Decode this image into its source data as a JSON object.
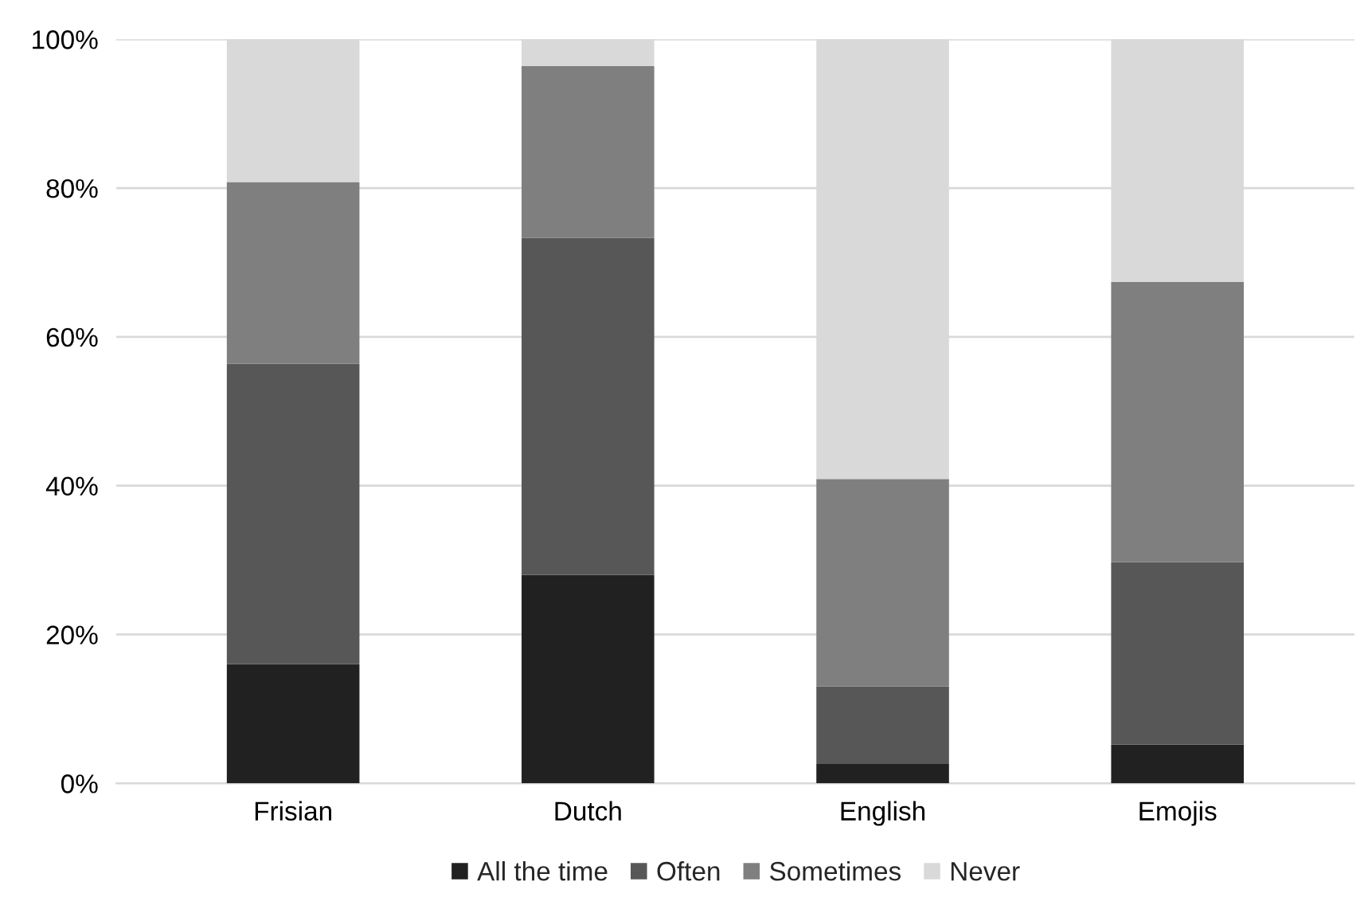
{
  "chart_data": {
    "type": "bar",
    "stacked": true,
    "categories": [
      "Frisian",
      "Dutch",
      "English",
      "Emojis"
    ],
    "series": [
      {
        "name": "All the time",
        "color": "#212121",
        "values": [
          16.0,
          28.0,
          2.6,
          5.2
        ]
      },
      {
        "name": "Often",
        "color": "#575757",
        "values": [
          40.4,
          45.3,
          10.4,
          24.5
        ]
      },
      {
        "name": "Sometimes",
        "color": "#7f7f7f",
        "values": [
          24.4,
          23.1,
          27.9,
          37.7
        ]
      },
      {
        "name": "Never",
        "color": "#d9d9d9",
        "values": [
          19.2,
          3.6,
          59.1,
          32.6
        ]
      }
    ],
    "ylim": [
      0,
      100
    ],
    "yticks": [
      {
        "value": 0,
        "label": "0%"
      },
      {
        "value": 20,
        "label": "20%"
      },
      {
        "value": 40,
        "label": "40%"
      },
      {
        "value": 60,
        "label": "60%"
      },
      {
        "value": 80,
        "label": "80%"
      },
      {
        "value": 100,
        "label": "100%"
      }
    ],
    "grid": "y",
    "legend": "bottom"
  }
}
